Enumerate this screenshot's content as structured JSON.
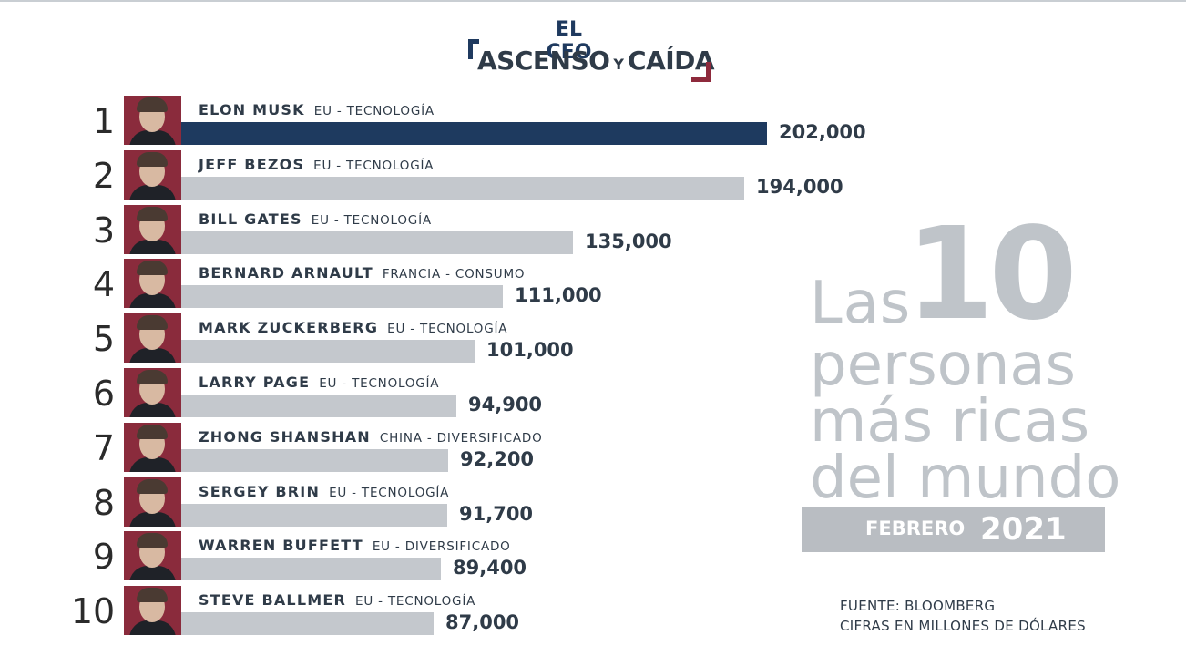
{
  "logo": {
    "line1": "EL CEO",
    "line2a": "ASCENSO",
    "line2b": "Y",
    "line2c": "CAÍDA"
  },
  "headline": {
    "las": "Las",
    "ten": "10",
    "line2": "personas",
    "line3": "más ricas",
    "line4": "del mundo"
  },
  "date": {
    "month": "FEBRERO",
    "year": "2021"
  },
  "source": {
    "line1": "FUENTE: BLOOMBERG",
    "line2": "CIFRAS EN MILLONES DE DÓLARES"
  },
  "colors": {
    "highlight_bar": "#1e3a5f",
    "bar": "#c4c8cd",
    "photo_bg": "#8a2b3c",
    "headline": "#bfc4c9"
  },
  "chart_data": {
    "type": "bar",
    "orientation": "horizontal",
    "unit": "millones de dólares",
    "rows": [
      {
        "rank": "1",
        "name": "ELON MUSK",
        "sector": "EU - TECNOLOGÍA",
        "value": 202000,
        "label": "202,000",
        "highlight": true
      },
      {
        "rank": "2",
        "name": "JEFF BEZOS",
        "sector": "EU - TECNOLOGÍA",
        "value": 194000,
        "label": "194,000"
      },
      {
        "rank": "3",
        "name": "BILL GATES",
        "sector": "EU - TECNOLOGÍA",
        "value": 135000,
        "label": "135,000"
      },
      {
        "rank": "4",
        "name": "BERNARD ARNAULT",
        "sector": "FRANCIA - CONSUMO",
        "value": 111000,
        "label": "111,000"
      },
      {
        "rank": "5",
        "name": "MARK ZUCKERBERG",
        "sector": "EU - TECNOLOGÍA",
        "value": 101000,
        "label": "101,000"
      },
      {
        "rank": "6",
        "name": "LARRY PAGE",
        "sector": "EU - TECNOLOGÍA",
        "value": 94900,
        "label": "94,900"
      },
      {
        "rank": "7",
        "name": "ZHONG SHANSHAN",
        "sector": "CHINA - DIVERSIFICADO",
        "value": 92200,
        "label": "92,200"
      },
      {
        "rank": "8",
        "name": "SERGEY BRIN",
        "sector": "EU - TECNOLOGÍA",
        "value": 91700,
        "label": "91,700"
      },
      {
        "rank": "9",
        "name": "WARREN BUFFETT",
        "sector": "EU - DIVERSIFICADO",
        "value": 89400,
        "label": "89,400"
      },
      {
        "rank": "10",
        "name": "STEVE BALLMER",
        "sector": "EU - TECNOLOGÍA",
        "value": 87000,
        "label": "87,000"
      }
    ]
  }
}
